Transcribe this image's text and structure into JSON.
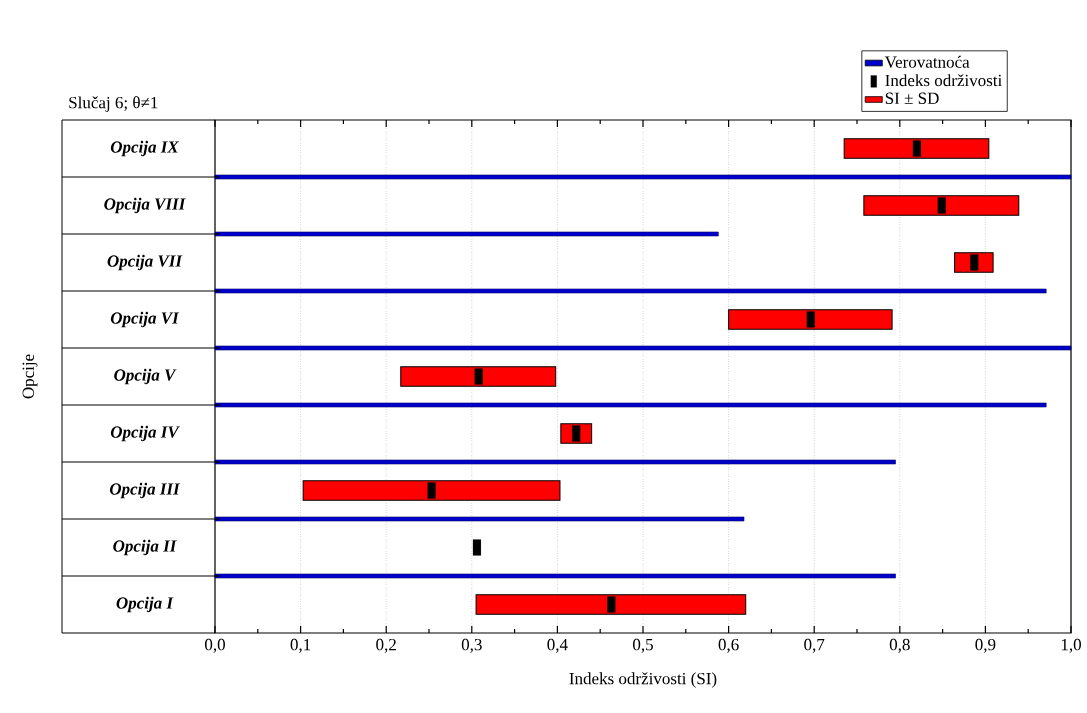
{
  "chart_data": {
    "type": "bar",
    "orientation": "horizontal",
    "title": "Slučaj 6; θ≠1",
    "xlabel": "Indeks održivosti (SI)",
    "ylabel": "Opcije",
    "categories": [
      "Opcija IX",
      "Opcija VIII",
      "Opcija VII",
      "Opcija VI",
      "Opcija V",
      "Opcija IV",
      "Opcija III",
      "Opcija II",
      "Opcija I"
    ],
    "series": [
      {
        "name": "Verovatnoća",
        "color": "#0000cc",
        "values": [
          null,
          1.0,
          0.588,
          0.971,
          1.0,
          0.971,
          0.795,
          0.618,
          0.795
        ]
      },
      {
        "name": "SI ± SD",
        "color": "#ff0000",
        "base": [
          0.735,
          0.758,
          0.864,
          0.6,
          0.217,
          0.404,
          0.103,
          null,
          0.305
        ],
        "values": [
          0.169,
          0.181,
          0.045,
          0.191,
          0.181,
          0.036,
          0.3,
          null,
          0.315
        ]
      },
      {
        "name": "Indeks održivosti",
        "type": "scatter",
        "color": "#000000",
        "values": [
          0.82,
          0.849,
          0.887,
          0.696,
          0.308,
          0.422,
          0.253,
          0.306,
          0.463
        ]
      }
    ],
    "xlim": [
      0,
      1
    ],
    "xticks": [
      {
        "value": 0,
        "label": "0,0"
      },
      {
        "value": 0.1,
        "label": "0,1"
      },
      {
        "value": 0.2,
        "label": "0,2"
      },
      {
        "value": 0.3,
        "label": "0,3"
      },
      {
        "value": 0.4,
        "label": "0,4"
      },
      {
        "value": 0.5,
        "label": "0,5"
      },
      {
        "value": 0.6,
        "label": "0,6"
      },
      {
        "value": 0.7,
        "label": "0,7"
      },
      {
        "value": 0.8,
        "label": "0,8"
      },
      {
        "value": 0.9,
        "label": "0,9"
      },
      {
        "value": 1,
        "label": "1,0"
      }
    ],
    "grid": "x",
    "legend": "top right"
  }
}
